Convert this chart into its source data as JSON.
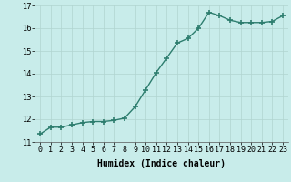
{
  "x": [
    0,
    1,
    2,
    3,
    4,
    5,
    6,
    7,
    8,
    9,
    10,
    11,
    12,
    13,
    14,
    15,
    16,
    17,
    18,
    19,
    20,
    21,
    22,
    23
  ],
  "y": [
    11.35,
    11.65,
    11.65,
    11.75,
    11.85,
    11.9,
    11.9,
    11.95,
    12.05,
    12.55,
    13.3,
    14.05,
    14.7,
    15.35,
    15.55,
    16.0,
    16.7,
    16.55,
    16.35,
    16.25,
    16.25,
    16.25,
    16.3,
    16.55
  ],
  "line_color": "#2d7d6e",
  "marker": "+",
  "marker_size": 4,
  "bg_color": "#c8ecea",
  "grid_color": "#b0d4d0",
  "xlabel": "Humidex (Indice chaleur)",
  "ylim": [
    11,
    17
  ],
  "xlim_min": -0.5,
  "xlim_max": 23.5,
  "yticks": [
    11,
    12,
    13,
    14,
    15,
    16,
    17
  ],
  "xtick_labels": [
    "0",
    "1",
    "2",
    "3",
    "4",
    "5",
    "6",
    "7",
    "8",
    "9",
    "10",
    "11",
    "12",
    "13",
    "14",
    "15",
    "16",
    "17",
    "18",
    "19",
    "20",
    "21",
    "22",
    "23"
  ],
  "xlabel_fontsize": 7,
  "tick_fontsize": 6,
  "line_width": 1.0,
  "marker_color": "#2d7d6e"
}
